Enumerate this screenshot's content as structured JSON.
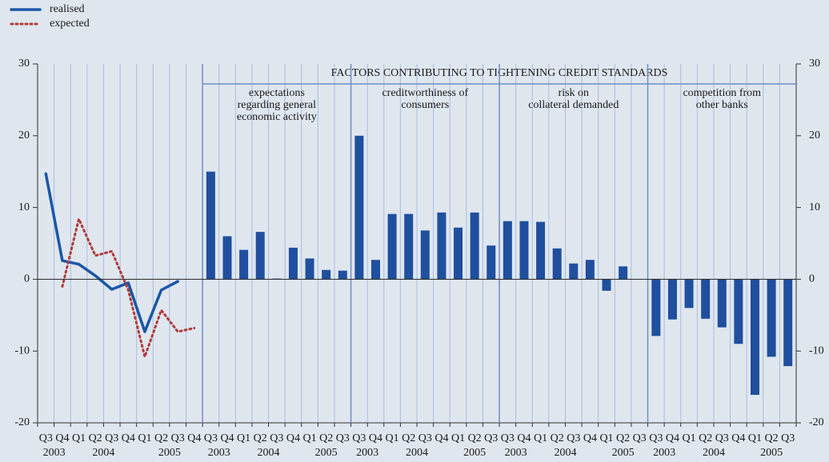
{
  "chart_data": [
    {
      "type": "line",
      "categories": [
        "Q3",
        "Q4",
        "Q1",
        "Q2",
        "Q3",
        "Q4",
        "Q1",
        "Q2",
        "Q3",
        "Q4"
      ],
      "years": [
        "2003",
        "2004",
        "2005"
      ],
      "series": [
        {
          "name": "realised",
          "color": "#1a56a6",
          "style": "solid",
          "values": [
            14.7,
            2.6,
            2.1,
            0.5,
            -1.4,
            -0.5,
            -7.3,
            -1.5,
            -0.3,
            null
          ]
        },
        {
          "name": "expected",
          "color": "#b23a3a",
          "style": "dotted",
          "values": [
            null,
            -1.0,
            8.4,
            3.3,
            3.9,
            -1.5,
            -10.8,
            -4.3,
            -7.3,
            -6.8
          ]
        }
      ],
      "ylim": [
        -20,
        30
      ],
      "yticks": [
        -20,
        -10,
        0,
        10,
        20,
        30
      ]
    },
    {
      "type": "bar",
      "title": "FACTORS CONTRIBUTING TO TIGHTENING CREDIT STANDARDS",
      "color": "#1f4f9e",
      "ylim": [
        -20,
        30
      ],
      "yticks": [
        -20,
        -10,
        0,
        10,
        20,
        30
      ],
      "panels": [
        {
          "title": [
            "expectations",
            "regarding general",
            "economic activity"
          ],
          "categories": [
            "Q3",
            "Q4",
            "Q1",
            "Q2",
            "Q3",
            "Q4",
            "Q1",
            "Q2",
            "Q3"
          ],
          "years": [
            "2003",
            "2004",
            "2005"
          ],
          "values": [
            15.0,
            6.0,
            4.1,
            6.6,
            0.1,
            4.4,
            2.9,
            1.3,
            1.2
          ]
        },
        {
          "title": [
            "creditworthiness of",
            "consumers"
          ],
          "categories": [
            "Q3",
            "Q4",
            "Q1",
            "Q2",
            "Q3",
            "Q4",
            "Q1",
            "Q2",
            "Q3"
          ],
          "years": [
            "2003",
            "2004",
            "2005"
          ],
          "values": [
            20.0,
            2.7,
            9.1,
            9.1,
            6.8,
            9.3,
            7.2,
            9.3,
            4.7
          ]
        },
        {
          "title": [
            "risk on",
            "collateral demanded"
          ],
          "categories": [
            "Q3",
            "Q4",
            "Q1",
            "Q2",
            "Q3",
            "Q4",
            "Q1",
            "Q2",
            "Q3"
          ],
          "years": [
            "2003",
            "2004",
            "2005"
          ],
          "values": [
            8.1,
            8.1,
            8.0,
            4.3,
            2.2,
            2.7,
            -1.6,
            1.8,
            0
          ]
        },
        {
          "title": [
            "competition from",
            "other banks"
          ],
          "categories": [
            "Q3",
            "Q4",
            "Q1",
            "Q2",
            "Q3",
            "Q4",
            "Q1",
            "Q2",
            "Q3"
          ],
          "years": [
            "2003",
            "2004",
            "2005"
          ],
          "values": [
            -7.9,
            -5.6,
            -4.0,
            -5.5,
            -6.7,
            -9.0,
            -16.1,
            -10.8,
            -12.1
          ]
        }
      ]
    }
  ]
}
